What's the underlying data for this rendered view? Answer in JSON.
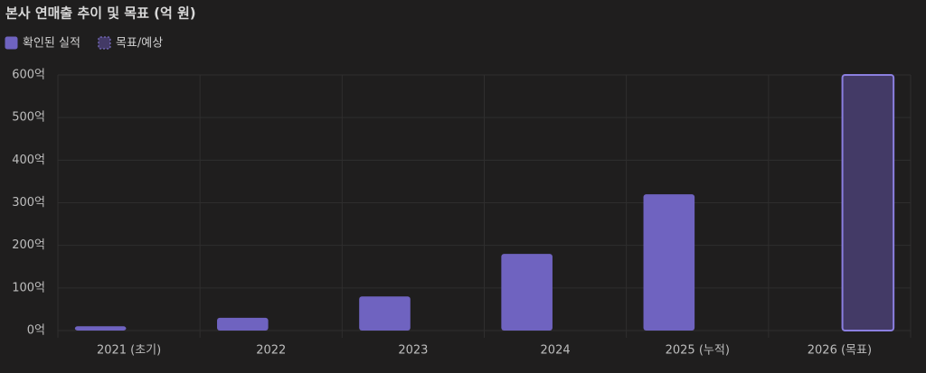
{
  "chart_data": {
    "type": "bar",
    "title": "본사 연매출 추이 및 목표 (억 원)",
    "categories": [
      "2021 (초기)",
      "2022",
      "2023",
      "2024",
      "2025 (누적)",
      "2026 (목표)"
    ],
    "series": [
      {
        "name": "확인된 실적",
        "color": "#6f63c0",
        "values": [
          10,
          30,
          80,
          180,
          320,
          null
        ]
      },
      {
        "name": "목표/예상",
        "color": "#433a66",
        "values": [
          null,
          null,
          null,
          null,
          null,
          600
        ]
      }
    ],
    "ylim": [
      0,
      600
    ],
    "yticks": [
      {
        "value": 0,
        "label": "0억"
      },
      {
        "value": 100,
        "label": "100억"
      },
      {
        "value": 200,
        "label": "200억"
      },
      {
        "value": 300,
        "label": "300억"
      },
      {
        "value": 400,
        "label": "400억"
      },
      {
        "value": 500,
        "label": "500억"
      },
      {
        "value": 600,
        "label": "600억"
      }
    ],
    "grid": true
  }
}
